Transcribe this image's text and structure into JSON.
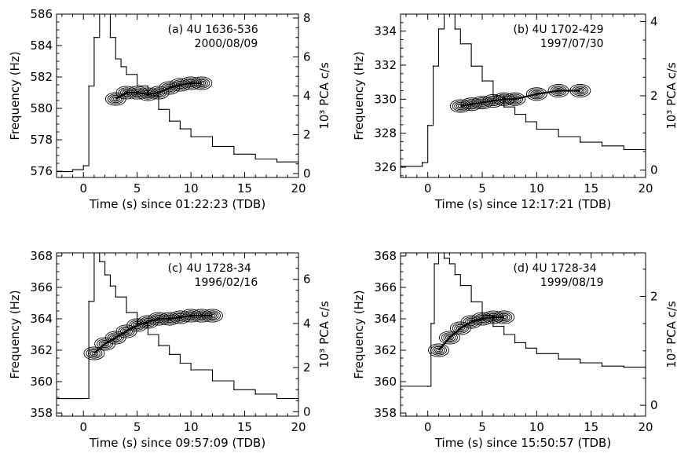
{
  "chart_data": [
    {
      "type": "line",
      "panel_label": "(a)",
      "source": "4U 1636-536",
      "date": "2000/08/09",
      "xlabel": "Time (s) since 01:22:23 (TDB)",
      "ylabel": "Frequency (Hz)",
      "ylabel_right": "10³ PCA c/s",
      "xlim": [
        -2.5,
        20
      ],
      "ylim": [
        575.6,
        586
      ],
      "ylim_right": [
        -0.2,
        8.2
      ],
      "xticks": [
        0,
        5,
        10,
        15,
        20
      ],
      "yticks": [
        576,
        578,
        580,
        582,
        584,
        586
      ],
      "yticks_right": [
        0,
        2,
        4,
        6,
        8
      ],
      "lightcurve": {
        "name": "PCA count rate (10³ c/s)",
        "x": [
          -2.5,
          -1,
          0,
          0.5,
          1,
          1.5,
          2,
          2.5,
          3,
          3.5,
          4,
          5,
          6,
          7,
          8,
          9,
          10,
          12,
          14,
          16,
          18,
          20
        ],
        "y": [
          0.1,
          0.2,
          0.4,
          4.5,
          7.0,
          8.5,
          8.2,
          7.0,
          5.9,
          5.5,
          5.1,
          4.5,
          4.0,
          3.3,
          2.7,
          2.3,
          1.9,
          1.4,
          1.0,
          0.75,
          0.6,
          0.5
        ]
      },
      "qpo_track": {
        "name": "burst oscillation frequency",
        "x": [
          3.0,
          4.0,
          5.0,
          6.0,
          7.0,
          8.0,
          9.0,
          10.0,
          11.0
        ],
        "y": [
          580.6,
          581.0,
          581.0,
          580.9,
          581.0,
          581.3,
          581.5,
          581.6,
          581.6
        ]
      }
    },
    {
      "type": "line",
      "panel_label": "(b)",
      "source": "4U 1702-429",
      "date": "1997/07/30",
      "xlabel": "Time (s) since 12:17:21 (TDB)",
      "ylabel": "Frequency (Hz)",
      "ylabel_right": "10³ PCA c/s",
      "xlim": [
        -2.5,
        20
      ],
      "ylim": [
        325.4,
        335
      ],
      "ylim_right": [
        -0.2,
        4.2
      ],
      "xticks": [
        0,
        5,
        10,
        15,
        20
      ],
      "yticks": [
        326,
        328,
        330,
        332,
        334
      ],
      "yticks_right": [
        0,
        2,
        4
      ],
      "lightcurve": {
        "name": "PCA count rate (10³ c/s)",
        "x": [
          -2.5,
          -0.5,
          0,
          0.5,
          1,
          1.5,
          2,
          2.5,
          3,
          4,
          5,
          6,
          7,
          8,
          9,
          10,
          12,
          14,
          16,
          18,
          20
        ],
        "y": [
          0.1,
          0.2,
          1.2,
          2.8,
          3.8,
          4.5,
          4.3,
          3.8,
          3.4,
          2.8,
          2.4,
          2.0,
          1.7,
          1.5,
          1.3,
          1.1,
          0.9,
          0.75,
          0.65,
          0.55,
          0.5
        ]
      },
      "qpo_track": {
        "name": "burst oscillation frequency",
        "x": [
          3.0,
          4.0,
          5.0,
          6.0,
          7.0,
          8.0,
          10.0,
          12.0,
          14.0
        ],
        "y": [
          329.6,
          329.7,
          329.8,
          329.9,
          330.0,
          330.0,
          330.3,
          330.5,
          330.5
        ]
      }
    },
    {
      "type": "line",
      "panel_label": "(c)",
      "source": "4U 1728-34",
      "date": "1996/02/16",
      "xlabel": "Time (s) since 09:57:09 (TDB)",
      "ylabel": "Frequency (Hz)",
      "ylabel_right": "10³ PCA c/s",
      "xlim": [
        -2.5,
        20
      ],
      "ylim": [
        357.8,
        368.2
      ],
      "ylim_right": [
        -0.2,
        7.2
      ],
      "xticks": [
        0,
        5,
        10,
        15,
        20
      ],
      "yticks": [
        358,
        360,
        362,
        364,
        366,
        368
      ],
      "yticks_right": [
        0,
        2,
        4,
        6
      ],
      "lightcurve": {
        "name": "PCA count rate (10³ c/s)",
        "x": [
          -2.5,
          0,
          0.5,
          1,
          1.5,
          2,
          2.5,
          3,
          4,
          5,
          6,
          7,
          8,
          9,
          10,
          12,
          14,
          16,
          18,
          20
        ],
        "y": [
          0.6,
          0.6,
          5.0,
          7.2,
          6.8,
          6.2,
          5.7,
          5.2,
          4.5,
          4.0,
          3.5,
          3.0,
          2.6,
          2.2,
          1.9,
          1.4,
          1.0,
          0.8,
          0.6,
          0.5
        ]
      },
      "qpo_track": {
        "name": "burst oscillation frequency",
        "x": [
          1.0,
          2.0,
          3.0,
          4.0,
          5.0,
          6.0,
          7.0,
          8.0,
          9.0,
          10.0,
          11.0,
          12.0
        ],
        "y": [
          361.8,
          362.4,
          362.8,
          363.2,
          363.6,
          363.8,
          364.0,
          364.0,
          364.1,
          364.2,
          364.2,
          364.2
        ]
      }
    },
    {
      "type": "line",
      "panel_label": "(d)",
      "source": "4U 1728-34",
      "date": "1999/08/19",
      "xlabel": "Time (s) since 15:50:57 (TDB)",
      "ylabel": "Frequency (Hz)",
      "ylabel_right": "10³ PCA c/s",
      "xlim": [
        -2.5,
        20
      ],
      "ylim": [
        357.8,
        368.2
      ],
      "ylim_right": [
        -0.2,
        2.8
      ],
      "xticks": [
        0,
        5,
        10,
        15,
        20
      ],
      "yticks": [
        358,
        360,
        362,
        364,
        366,
        368
      ],
      "yticks_right": [
        0,
        2
      ],
      "lightcurve": {
        "name": "PCA count rate (10³ c/s)",
        "x": [
          -2.5,
          0,
          0.3,
          0.6,
          1,
          1.5,
          2,
          2.5,
          3,
          4,
          5,
          6,
          7,
          8,
          9,
          10,
          12,
          14,
          16,
          18,
          20
        ],
        "y": [
          0.35,
          0.35,
          1.5,
          2.6,
          2.8,
          2.7,
          2.6,
          2.4,
          2.2,
          1.9,
          1.65,
          1.45,
          1.3,
          1.15,
          1.05,
          0.95,
          0.85,
          0.78,
          0.72,
          0.7,
          0.68
        ]
      },
      "qpo_track": {
        "name": "burst oscillation frequency",
        "x": [
          1.0,
          2.0,
          3.0,
          4.0,
          5.0,
          6.0,
          7.0
        ],
        "y": [
          362.0,
          362.8,
          363.4,
          363.8,
          364.0,
          364.1,
          364.1
        ]
      }
    }
  ]
}
